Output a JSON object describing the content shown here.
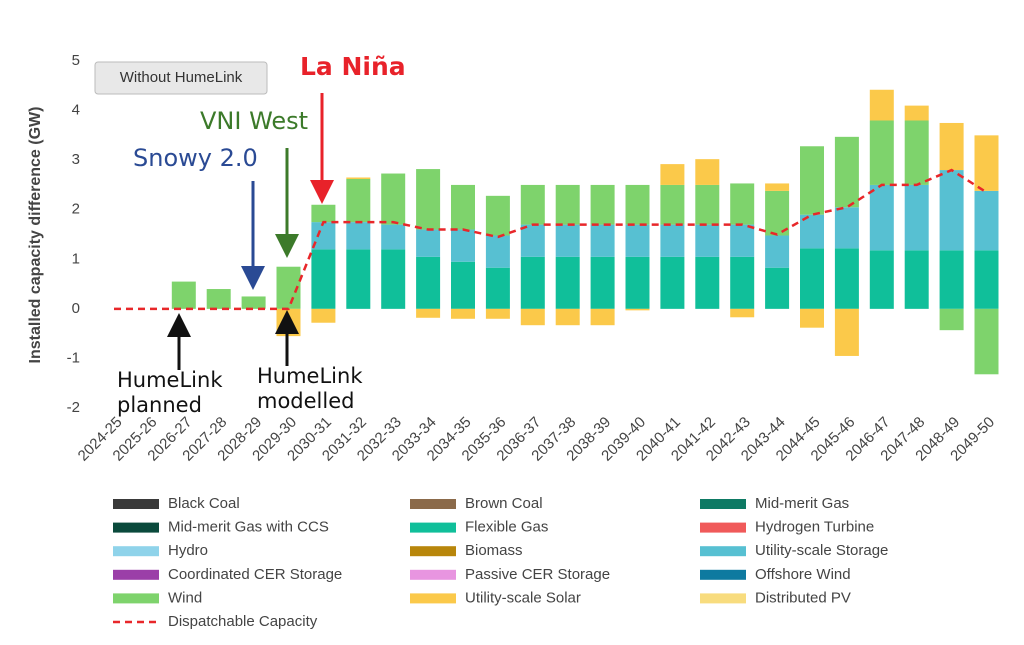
{
  "chart_data": {
    "type": "bar",
    "stacked": true,
    "y_label": "Installed capacity difference (GW)",
    "button": "Without HumeLink",
    "categories": [
      "2024-25",
      "2025-26",
      "2026-27",
      "2027-28",
      "2028-29",
      "2029-30",
      "2030-31",
      "2031-32",
      "2032-33",
      "2033-34",
      "2034-35",
      "2035-36",
      "2036-37",
      "2037-38",
      "2038-39",
      "2039-40",
      "2040-41",
      "2041-42",
      "2042-43",
      "2043-44",
      "2044-45",
      "2045-46",
      "2046-47",
      "2047-48",
      "2048-49",
      "2049-50"
    ],
    "ylim": [
      -2,
      5
    ],
    "yticks": [
      -2,
      -1,
      0,
      1,
      2,
      3,
      4,
      5
    ],
    "series": [
      {
        "name": "Black Coal",
        "color": "#3a3a3a",
        "values": [
          0,
          0,
          0,
          0,
          0,
          0,
          0,
          0,
          0,
          0,
          0,
          0,
          0,
          0,
          0,
          0,
          0,
          0,
          0,
          0,
          0,
          0,
          0,
          0,
          0,
          0
        ]
      },
      {
        "name": "Brown Coal",
        "color": "#8b6a4a",
        "values": [
          0,
          0,
          0,
          0,
          0,
          0,
          0,
          0,
          0,
          0,
          0,
          0,
          0,
          0,
          0,
          0,
          0,
          0,
          0,
          0,
          0,
          0,
          0,
          0,
          0,
          0
        ]
      },
      {
        "name": "Mid-merit Gas",
        "color": "#0e7a64",
        "values": [
          0,
          0,
          0,
          0,
          0,
          0,
          0,
          0,
          0,
          0,
          0,
          0,
          0,
          0,
          0,
          0,
          0,
          0,
          0,
          0,
          0,
          0,
          0,
          0,
          0,
          0
        ]
      },
      {
        "name": "Mid-merit Gas with CCS",
        "color": "#0a4a3c",
        "values": [
          0,
          0,
          0,
          0,
          0,
          0,
          0,
          0,
          0,
          0,
          0,
          0,
          0,
          0,
          0,
          0,
          0,
          0,
          0,
          0,
          0,
          0,
          0,
          0,
          0,
          0
        ]
      },
      {
        "name": "Flexible Gas",
        "color": "#10bf9a",
        "values": [
          0,
          0,
          0,
          0,
          0,
          0,
          1.2,
          1.2,
          1.2,
          1.05,
          0.95,
          0.83,
          1.05,
          1.05,
          1.05,
          1.05,
          1.05,
          1.05,
          1.05,
          0.83,
          1.22,
          1.22,
          1.18,
          1.18,
          1.18,
          1.18
        ]
      },
      {
        "name": "Hydrogen Turbine",
        "color": "#f05a5a",
        "values": [
          0,
          0,
          0,
          0,
          0,
          0,
          0,
          0,
          0,
          0,
          0,
          0,
          0,
          0,
          0,
          0,
          0,
          0,
          0,
          0,
          0,
          0,
          0,
          0,
          0,
          0
        ]
      },
      {
        "name": "Hydro",
        "color": "#8fd3ea",
        "values": [
          0,
          0,
          0,
          0,
          0,
          0,
          0,
          0,
          0,
          0,
          0,
          0,
          0,
          0,
          0,
          0,
          0,
          0,
          0,
          0,
          0,
          0,
          0,
          0,
          0,
          0
        ]
      },
      {
        "name": "Biomass",
        "color": "#b8860b",
        "values": [
          0,
          0,
          0,
          0,
          0,
          0,
          0,
          0,
          0,
          0,
          0,
          0,
          0,
          0,
          0,
          0,
          0,
          0,
          0,
          0,
          0,
          0,
          0,
          0,
          0,
          0
        ]
      },
      {
        "name": "Utility-scale Storage",
        "color": "#57c0d2",
        "values": [
          0,
          0,
          0,
          0,
          0,
          0,
          0.55,
          0.55,
          0.5,
          0.55,
          0.65,
          0.65,
          0.65,
          0.65,
          0.65,
          0.65,
          0.65,
          0.65,
          0.65,
          0.65,
          0.68,
          0.83,
          1.32,
          1.32,
          1.62,
          1.2
        ]
      },
      {
        "name": "Coordinated CER Storage",
        "color": "#9b3fa8",
        "values": [
          0,
          0,
          0,
          0,
          0,
          0,
          0,
          0,
          0,
          0,
          0,
          0,
          0,
          0,
          0,
          0,
          0,
          0,
          0,
          0,
          0,
          0,
          0,
          0,
          0,
          0
        ]
      },
      {
        "name": "Passive CER Storage",
        "color": "#e895e0",
        "values": [
          0,
          0,
          0,
          0,
          0,
          0,
          0,
          0,
          0,
          0,
          0,
          0,
          0,
          0,
          0,
          0,
          0,
          0,
          0,
          0,
          0,
          0,
          0,
          0,
          0,
          0
        ]
      },
      {
        "name": "Offshore Wind",
        "color": "#0e7aa0",
        "values": [
          0,
          0,
          0,
          0,
          0,
          0,
          0,
          0,
          0,
          0,
          0,
          0,
          0,
          0,
          0,
          0,
          0,
          0,
          0,
          0,
          0,
          0,
          0,
          0,
          0,
          0
        ]
      },
      {
        "name": "Wind",
        "color": "#7ed36c",
        "values": [
          0,
          0,
          0.55,
          0.4,
          0.25,
          0.85,
          0.35,
          0.87,
          1.03,
          1.22,
          0.9,
          0.8,
          0.8,
          0.8,
          0.8,
          0.8,
          0.8,
          0.8,
          0.83,
          0.9,
          1.38,
          1.42,
          1.3,
          1.3,
          -0.43,
          -1.32
        ]
      },
      {
        "name": "Utility-scale Solar",
        "color": "#fbc94a",
        "values": [
          0,
          0,
          0,
          0,
          0,
          -0.55,
          -0.28,
          0.03,
          0,
          -0.18,
          -0.2,
          -0.2,
          -0.33,
          -0.33,
          -0.33,
          -0.03,
          0.42,
          0.52,
          -0.17,
          0.15,
          -0.38,
          -0.95,
          0.62,
          0.3,
          0.95,
          1.12
        ]
      },
      {
        "name": "Distributed PV",
        "color": "#f8dc7e",
        "values": [
          0,
          0,
          0,
          0,
          0,
          0,
          0,
          0,
          0,
          0,
          0,
          0,
          0,
          0,
          0,
          0,
          0,
          0,
          0,
          0,
          0,
          0,
          0,
          0,
          0,
          0
        ]
      }
    ],
    "line": {
      "name": "Dispatchable Capacity",
      "color": "#e8272a",
      "values": [
        0,
        0,
        0,
        0,
        0,
        0,
        1.75,
        1.75,
        1.75,
        1.6,
        1.6,
        1.45,
        1.7,
        1.7,
        1.7,
        1.7,
        1.7,
        1.7,
        1.7,
        1.5,
        1.9,
        2.05,
        2.5,
        2.5,
        2.8,
        2.35
      ]
    },
    "annotations": [
      {
        "text": "La Niña",
        "color": "#e8222a"
      },
      {
        "text": "VNI West",
        "color": "#3c7a2a"
      },
      {
        "text": "Snowy 2.0",
        "color": "#2a4a94"
      },
      {
        "text": "HumeLink planned",
        "color": "#111111"
      },
      {
        "text": "HumeLink modelled",
        "color": "#111111"
      }
    ]
  }
}
